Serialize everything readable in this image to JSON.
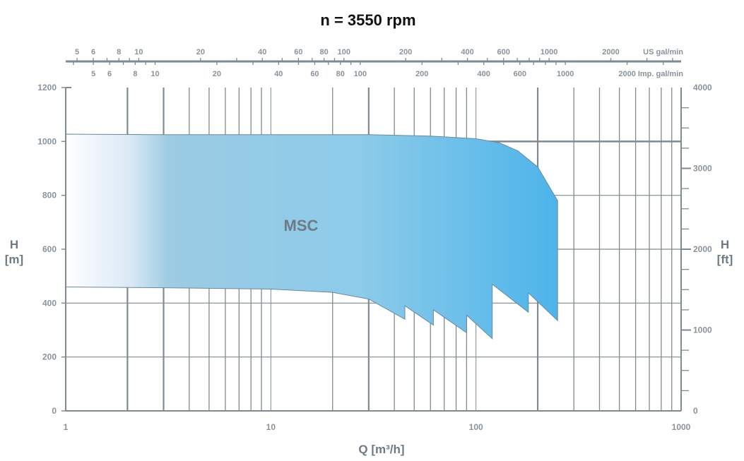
{
  "chart_data": {
    "type": "area",
    "title": "n = 3550 rpm",
    "xlabel": "Q [m³/h]",
    "ylabel_left": "H\n[m]",
    "ylabel_right": "H\n[ft]",
    "x_scale": "log",
    "xlim": [
      1,
      1000
    ],
    "ylim": [
      0,
      1200
    ],
    "ylim_ft": [
      0,
      4000
    ],
    "x_tick_labels": [
      "1",
      "10",
      "100",
      "1000"
    ],
    "y_tick_labels": [
      "0",
      "200",
      "400",
      "600",
      "800",
      "1000",
      "1200"
    ],
    "y_ft_tick_labels": [
      "0",
      "1000",
      "2000",
      "3000",
      "4000"
    ],
    "us_gal_label": "US gal/min",
    "us_gal_ticks": [
      "5",
      "6",
      "8",
      "10",
      "20",
      "40",
      "60",
      "80",
      "100",
      "200",
      "400",
      "600",
      "1000",
      "2000"
    ],
    "imp_gal_label": "Imp. gal/min",
    "imp_gal_ticks": [
      "5",
      "6",
      "8",
      "10",
      "20",
      "40",
      "60",
      "80",
      "100",
      "200",
      "400",
      "600",
      "1000",
      "2000"
    ],
    "region_label": "MSC",
    "series": [
      {
        "name": "MSC",
        "upper": [
          [
            1,
            1027
          ],
          [
            3,
            1025
          ],
          [
            10,
            1025
          ],
          [
            30,
            1025
          ],
          [
            60,
            1020
          ],
          [
            100,
            1010
          ],
          [
            130,
            995
          ],
          [
            160,
            965
          ],
          [
            200,
            905
          ],
          [
            250,
            780
          ]
        ],
        "lower": [
          [
            1,
            460
          ],
          [
            3,
            457
          ],
          [
            10,
            452
          ],
          [
            20,
            440
          ],
          [
            30,
            415
          ],
          [
            45,
            340
          ],
          [
            45,
            390
          ],
          [
            62,
            318
          ],
          [
            62,
            375
          ],
          [
            90,
            290
          ],
          [
            90,
            355
          ],
          [
            120,
            268
          ],
          [
            120,
            470
          ],
          [
            180,
            366
          ],
          [
            180,
            438
          ],
          [
            250,
            335
          ]
        ]
      }
    ],
    "colors": {
      "fill_start": "#ffffff",
      "fill_mid": "#93cfea",
      "fill_end": "#4db4ea",
      "outline": "#6b8a9a",
      "grid": "#7f8a93"
    }
  }
}
